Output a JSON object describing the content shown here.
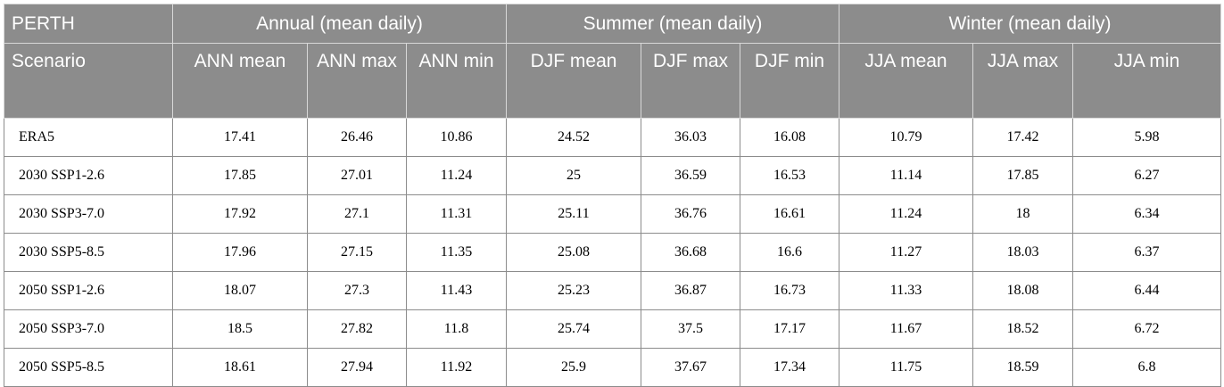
{
  "table": {
    "group_headers": [
      {
        "label": "PERTH",
        "span": 1
      },
      {
        "label": "Annual (mean daily)",
        "span": 3
      },
      {
        "label": "Summer (mean daily)",
        "span": 3
      },
      {
        "label": "Winter (mean daily)",
        "span": 3
      }
    ],
    "columns": [
      "Scenario",
      "ANN mean",
      "ANN max",
      "ANN min",
      "DJF mean",
      "DJF max",
      "DJF min",
      "JJA mean",
      "JJA max",
      "JJA min"
    ],
    "rows": [
      [
        "ERA5",
        "17.41",
        "26.46",
        "10.86",
        "24.52",
        "36.03",
        "16.08",
        "10.79",
        "17.42",
        "5.98"
      ],
      [
        "2030 SSP1-2.6",
        "17.85",
        "27.01",
        "11.24",
        "25",
        "36.59",
        "16.53",
        "11.14",
        "17.85",
        "6.27"
      ],
      [
        "2030 SSP3-7.0",
        "17.92",
        "27.1",
        "11.31",
        "25.11",
        "36.76",
        "16.61",
        "11.24",
        "18",
        "6.34"
      ],
      [
        "2030 SSP5-8.5",
        "17.96",
        "27.15",
        "11.35",
        "25.08",
        "36.68",
        "16.6",
        "11.27",
        "18.03",
        "6.37"
      ],
      [
        "2050 SSP1-2.6",
        "18.07",
        "27.3",
        "11.43",
        "25.23",
        "36.87",
        "16.73",
        "11.33",
        "18.08",
        "6.44"
      ],
      [
        "2050 SSP3-7.0",
        "18.5",
        "27.82",
        "11.8",
        "25.74",
        "37.5",
        "17.17",
        "11.67",
        "18.52",
        "6.72"
      ],
      [
        "2050 SSP5-8.5",
        "18.61",
        "27.94",
        "11.92",
        "25.9",
        "37.67",
        "17.34",
        "11.75",
        "18.59",
        "6.8"
      ]
    ]
  }
}
